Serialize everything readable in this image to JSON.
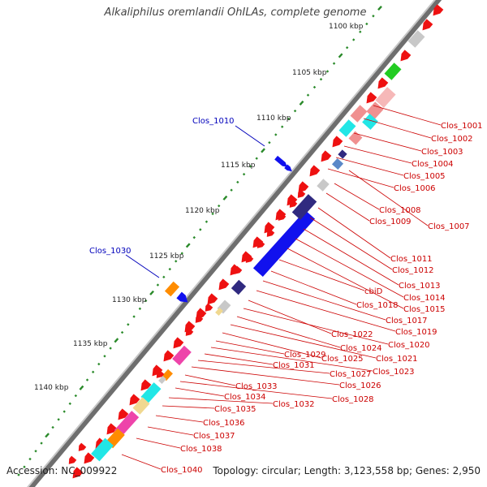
{
  "title": "Alkaliphilus oremlandii OhILAs, complete genome",
  "footer": {
    "accession": "Accession: NC_009922",
    "topology": "Topology: circular; Length: 3,123,558 bp; Genes: 2,950"
  },
  "colors": {
    "backbone": "#8a8a8a",
    "tick": "#2a8a2a",
    "label_red": "#cc0000",
    "label_blue": "#0000bb",
    "arrow_red": "#ee1111",
    "pink": "#f09090",
    "light_pink": "#f6b8b8",
    "green": "#22cc22",
    "cyan": "#22e6e6",
    "blue": "#1111ee",
    "navy": "#302a80",
    "slate": "#5060b0",
    "gray": "#c8c8c8",
    "orange": "#ff8c00",
    "magenta": "#ee44aa",
    "khaki": "#f0d890",
    "steel": "#5a88c8"
  },
  "kbp_labels": [
    "1100 kbp",
    "1105 kbp",
    "1110 kbp",
    "1115 kbp",
    "1120 kbp",
    "1125 kbp",
    "1130 kbp",
    "1135 kbp",
    "1140 kbp"
  ],
  "blue_labels": [
    "Clos_1010",
    "Clos_1030"
  ],
  "gene_labels": [
    "Clos_1001",
    "Clos_1002",
    "Clos_1003",
    "Clos_1004",
    "Clos_1005",
    "Clos_1006",
    "Clos_1007",
    "Clos_1008",
    "Clos_1009",
    "Clos_1011",
    "Clos_1012",
    "Clos_1013",
    "Clos_1014",
    "Clos_1015",
    "cbiD",
    "Clos_1018",
    "Clos_1017",
    "Clos_1019",
    "Clos_1022",
    "Clos_1020",
    "Clos_1024",
    "Clos_1021",
    "Clos_1025",
    "Clos_1029",
    "Clos_1023",
    "Clos_1031",
    "Clos_1027",
    "Clos_1026",
    "Clos_1033",
    "Clos_1028",
    "Clos_1034",
    "Clos_1032",
    "Clos_1035",
    "Clos_1036",
    "Clos_1037",
    "Clos_1038",
    "Clos_1040"
  ]
}
